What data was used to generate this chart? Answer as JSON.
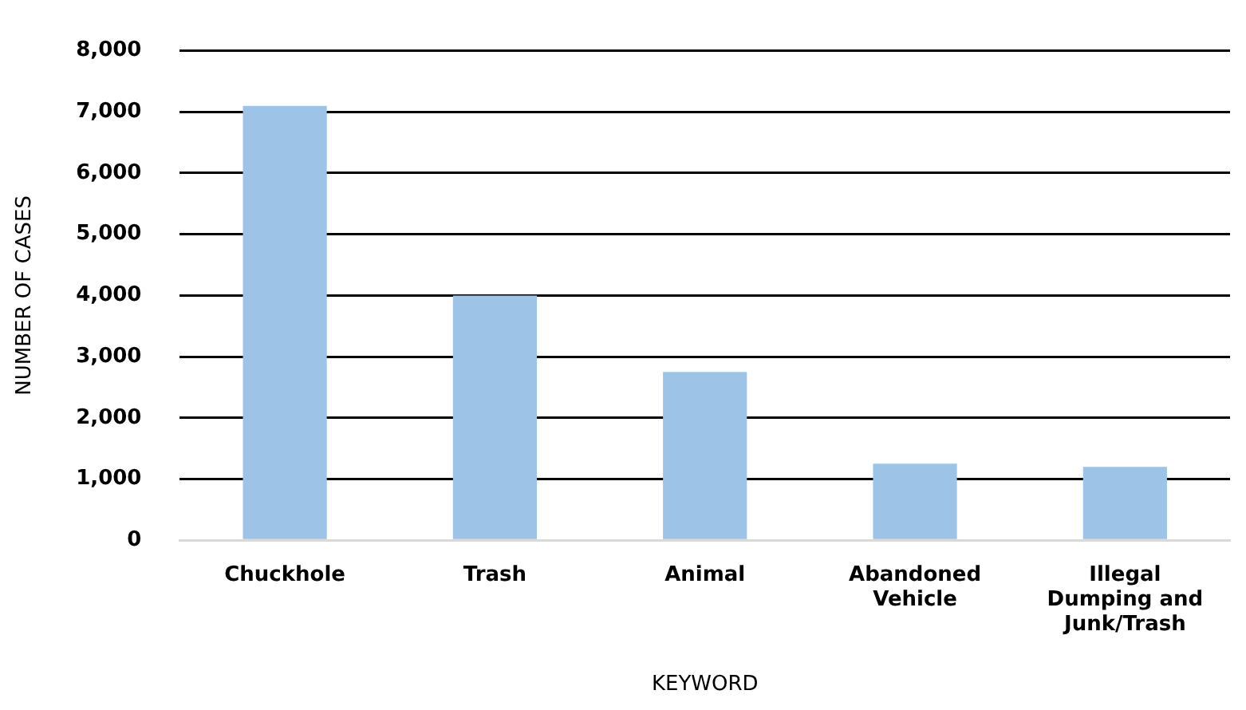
{
  "chart_data": {
    "type": "bar",
    "xlabel": "KEYWORD",
    "ylabel": "NUMBER OF CASES",
    "categories": [
      "Chuckhole",
      "Trash",
      "Animal",
      "Abandoned Vehicle",
      "Illegal Dumping and Junk/Trash"
    ],
    "values": [
      7100,
      4000,
      2750,
      1250,
      1200
    ],
    "color": "#9dc3e6",
    "ylim": [
      0,
      8000
    ],
    "yticks": [
      {
        "value": 0,
        "label": "0"
      },
      {
        "value": 1000,
        "label": "1,000"
      },
      {
        "value": 2000,
        "label": "2,000"
      },
      {
        "value": 3000,
        "label": "3,000"
      },
      {
        "value": 4000,
        "label": "4,000"
      },
      {
        "value": 5000,
        "label": "5,000"
      },
      {
        "value": 6000,
        "label": "6,000"
      },
      {
        "value": 7000,
        "label": "7,000"
      },
      {
        "value": 8000,
        "label": "8,000"
      }
    ],
    "grid": "y",
    "legend": false
  }
}
